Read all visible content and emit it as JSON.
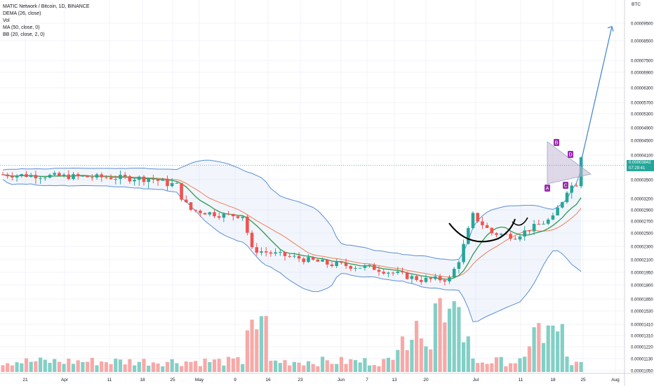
{
  "legend": {
    "symbol": "MATIC Network / Bitcoin, 1D, BINANCE",
    "dema": "DEMA (26, close)",
    "vol": "Vol",
    "ma": "MA (50, close, 0)",
    "bb": "BB (20, close, 2, 0)"
  },
  "axis_unit": "BTC",
  "price_badge": {
    "price": "0.00003842",
    "countdown": "07:29:41"
  },
  "colors": {
    "up": "#26a69a",
    "down": "#ef5350",
    "up_volume": "#83cfc6",
    "down_volume": "#f7a9a7",
    "dema": "#ef7e56",
    "ma": "#2e9a4f",
    "bollinger": "#5b8fd6",
    "arrow": "#4a8ad6",
    "pattern_label": "#9c27b0",
    "cup": "#000000"
  },
  "chart_data": {
    "type": "candlestick",
    "symbol": "MATIC Network / Bitcoin, 1D, BINANCE",
    "y_scale": "log",
    "y_tick_labels": [
      "0.00009500",
      "0.00008500",
      "0.00007500",
      "0.00006900",
      "0.00006300",
      "0.00005700",
      "0.00005300",
      "0.00004900",
      "0.00004500",
      "0.00004100",
      "0.00003500",
      "0.00003200",
      "0.00002900",
      "0.00002700",
      "0.00002500",
      "0.00002300",
      "0.00002100",
      "0.00001950",
      "0.00001800",
      "0.00001650",
      "0.00001530",
      "0.00001410",
      "0.00001310",
      "0.00001220",
      "0.00001130",
      "0.00001050"
    ],
    "x_tick_labels": [
      "21",
      "Apr",
      "11",
      "18",
      "25",
      "May",
      "9",
      "16",
      "23",
      "Jun",
      "7",
      "13",
      "20",
      "Jul",
      "11",
      "18",
      "25",
      "Aug"
    ],
    "x_range": [
      "2019-03-19",
      "2019-08-02"
    ],
    "last_price": 3.842e-05,
    "pattern_points": [
      "A",
      "B",
      "C",
      "D"
    ],
    "projection": {
      "from_price": 3.85e-05,
      "to_price": 9.3e-05,
      "to_date": "2019-07-31"
    },
    "cup_and_handle": true
  }
}
